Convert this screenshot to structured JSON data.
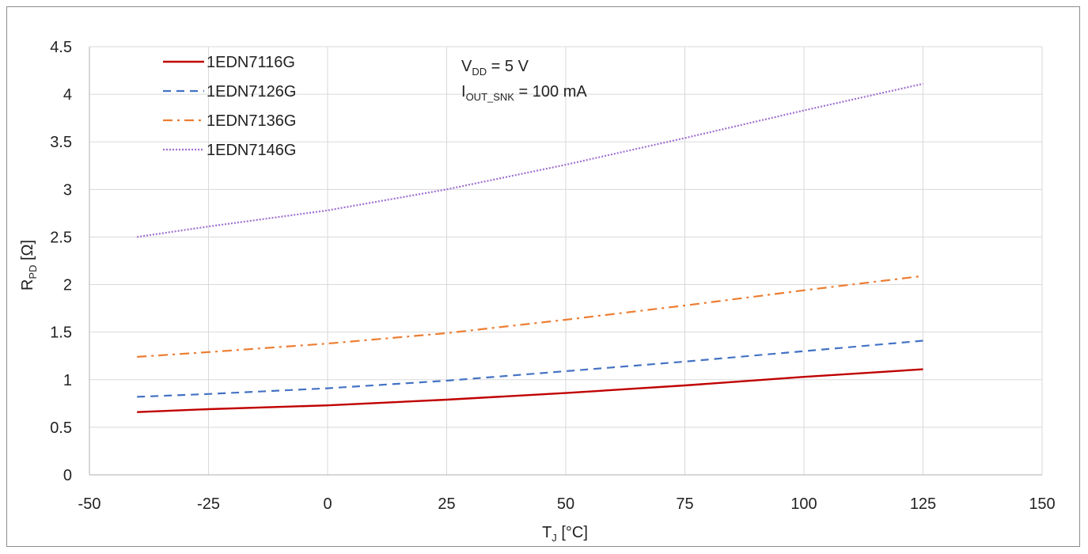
{
  "chart_data": {
    "type": "line",
    "title": "",
    "xlabel": "T",
    "xlabel_sub": "J",
    "xlabel_unit": " [°C]",
    "ylabel": "R",
    "ylabel_sub": "PD",
    "ylabel_unit": " [Ω]",
    "xlim": [
      -50,
      150
    ],
    "ylim": [
      0,
      4.5
    ],
    "x_ticks": [
      -50,
      -25,
      0,
      25,
      50,
      75,
      100,
      125,
      150
    ],
    "y_ticks": [
      0,
      0.5,
      1,
      1.5,
      2,
      2.5,
      3,
      3.5,
      4,
      4.5
    ],
    "x_tick_labels": [
      "-50",
      "-25",
      "0",
      "25",
      "50",
      "75",
      "100",
      "125",
      "150"
    ],
    "y_tick_labels": [
      "0",
      "0.5",
      "1",
      "1.5",
      "2",
      "2.5",
      "3",
      "3.5",
      "4",
      "4.5"
    ],
    "grid": true,
    "legend_position": "top-left",
    "annotations": {
      "line1_main": "V",
      "line1_sub": "DD",
      "line1_rest": " = 5 V",
      "line2_main": "I",
      "line2_sub": "OUT_SNK",
      "line2_rest": " = 100 mA"
    },
    "series": [
      {
        "name": "1EDN7116G",
        "color": "#c00000",
        "dash": "solid",
        "x": [
          -40,
          -25,
          0,
          25,
          50,
          75,
          100,
          125
        ],
        "y": [
          0.66,
          0.69,
          0.73,
          0.79,
          0.86,
          0.94,
          1.03,
          1.11
        ]
      },
      {
        "name": "1EDN7126G",
        "color": "#4472c4",
        "dash": "dash",
        "x": [
          -40,
          -25,
          0,
          25,
          50,
          75,
          100,
          125
        ],
        "y": [
          0.82,
          0.85,
          0.91,
          0.99,
          1.09,
          1.19,
          1.3,
          1.41
        ]
      },
      {
        "name": "1EDN7136G",
        "color": "#ed7d31",
        "dash": "dashdot",
        "x": [
          -40,
          -25,
          0,
          25,
          50,
          75,
          100,
          125
        ],
        "y": [
          1.24,
          1.29,
          1.38,
          1.49,
          1.63,
          1.78,
          1.94,
          2.09
        ]
      },
      {
        "name": "1EDN7146G",
        "color": "#9e6fcf",
        "dash": "dot",
        "x": [
          -40,
          -25,
          0,
          25,
          50,
          75,
          100,
          125
        ],
        "y": [
          2.5,
          2.61,
          2.78,
          3.0,
          3.26,
          3.54,
          3.83,
          4.11
        ]
      }
    ]
  }
}
